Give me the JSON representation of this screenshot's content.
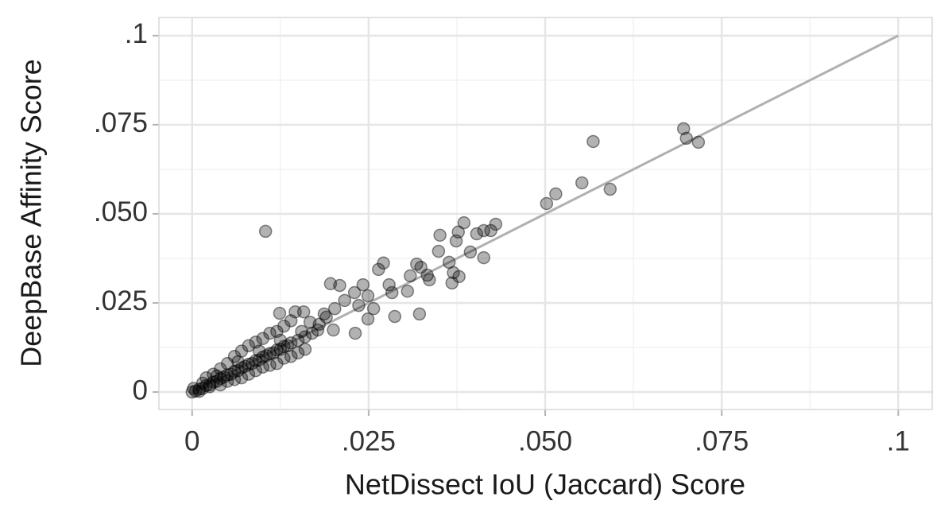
{
  "chart_data": {
    "type": "scatter",
    "x_label": "NetDissect IoU (Jaccard) Score",
    "y_label": "DeepBase Affinity Score",
    "xlim": [
      -0.0047,
      0.1048
    ],
    "ylim": [
      -0.0049,
      0.1051
    ],
    "xticks": [
      0,
      {
        "value": 0.025,
        "label": ".025"
      },
      {
        "value": 0.05,
        "label": ".050"
      },
      {
        "value": 0.075,
        "label": ".075"
      },
      {
        "value": 0.1,
        "label": ".1"
      }
    ],
    "yticks": [
      0,
      {
        "value": 0.025,
        "label": ".025"
      },
      {
        "value": 0.05,
        "label": ".050"
      },
      {
        "value": 0.075,
        "label": ".075"
      },
      {
        "value": 0.1,
        "label": ".1"
      }
    ],
    "xminor": [
      0.0125,
      0.0375,
      0.0625,
      0.0875
    ],
    "yminor": [
      0.0125,
      0.0375,
      0.0625,
      0.0875
    ],
    "grid": true,
    "color": "#000000",
    "lines": [
      {
        "x": [
          0,
          0.1
        ],
        "y": [
          0,
          0.1
        ],
        "color": "#b0b0b0"
      }
    ],
    "x": [
      0.0696,
      0.07,
      0.0717,
      0.0568,
      0.0552,
      0.0592,
      0.0515,
      0.0502,
      0.0104,
      0.043,
      0.0423,
      0.0403,
      0.0413,
      0.0385,
      0.0377,
      0.0374,
      0.0351,
      0.0394,
      0.0413,
      0.0349,
      0.0364,
      0.037,
      0.0378,
      0.0368,
      0.0318,
      0.0324,
      0.0333,
      0.0309,
      0.0336,
      0.0271,
      0.0264,
      0.0279,
      0.0283,
      0.0305,
      0.0322,
      0.0287,
      0.0196,
      0.0209,
      0.0242,
      0.023,
      0.0249,
      0.0236,
      0.0257,
      0.0249,
      0.0231,
      0.0202,
      0.0187,
      0.0216,
      0.0124,
      0.0146,
      0.0158,
      0.0167,
      0.0178,
      0.02,
      0,
      0.0005,
      0.001,
      0.0015,
      0.002,
      0.0025,
      0.003,
      0.0035,
      0.004,
      0.0045,
      0.005,
      0.0055,
      0.006,
      0.0065,
      0.007,
      0.0075,
      0.008,
      0.0085,
      0.009,
      0.0095,
      0.01,
      0.0105,
      0.011,
      0.0115,
      0.012,
      0.0125,
      0.013,
      0.0135,
      0.014,
      0.015,
      0.016,
      0.017,
      0.002,
      0.003,
      0.004,
      0.005,
      0.006,
      0.007,
      0.008,
      0.009,
      0.01,
      0.011,
      0.012,
      0.013,
      0.014,
      0.004,
      0.005,
      0.006,
      0.007,
      0.008,
      0.009,
      0.01,
      0.011,
      0.012,
      0.013,
      0.014,
      0.015,
      0.016,
      0.0035,
      0.0065,
      0.0095,
      0.0125,
      0.0155,
      0.0015,
      0.0025,
      0.001,
      0.0002,
      0.018,
      0.019
    ],
    "y": [
      0.0739,
      0.0712,
      0.0701,
      0.0703,
      0.0587,
      0.0569,
      0.0556,
      0.0529,
      0.0451,
      0.0471,
      0.0453,
      0.0444,
      0.0453,
      0.0475,
      0.0449,
      0.0424,
      0.044,
      0.0393,
      0.0377,
      0.0395,
      0.0364,
      0.0335,
      0.0324,
      0.0306,
      0.0359,
      0.035,
      0.0328,
      0.0326,
      0.0315,
      0.0362,
      0.0344,
      0.0301,
      0.0279,
      0.0283,
      0.0219,
      0.0212,
      0.0304,
      0.0299,
      0.0301,
      0.0279,
      0.027,
      0.0243,
      0.0234,
      0.0205,
      0.0165,
      0.0234,
      0.0219,
      0.0257,
      0.0221,
      0.0225,
      0.0225,
      0.0196,
      0.0174,
      0.0174,
      0,
      0.0003,
      0.0008,
      0.001,
      0.0018,
      0.002,
      0.0028,
      0.003,
      0.0038,
      0.0042,
      0.0048,
      0.005,
      0.0058,
      0.006,
      0.0068,
      0.0072,
      0.0078,
      0.008,
      0.0088,
      0.009,
      0.0098,
      0.0102,
      0.0108,
      0.011,
      0.0118,
      0.012,
      0.0128,
      0.013,
      0.0138,
      0.0145,
      0.0155,
      0.0165,
      0.004,
      0.005,
      0.0065,
      0.008,
      0.01,
      0.0115,
      0.013,
      0.014,
      0.015,
      0.0165,
      0.017,
      0.0185,
      0.02,
      0.002,
      0.003,
      0.0035,
      0.004,
      0.005,
      0.006,
      0.007,
      0.0075,
      0.008,
      0.0095,
      0.01,
      0.011,
      0.012,
      0.0045,
      0.0085,
      0.0115,
      0.0145,
      0.017,
      0.0025,
      0.0015,
      0.0002,
      0.001,
      0.019,
      0.021
    ]
  }
}
